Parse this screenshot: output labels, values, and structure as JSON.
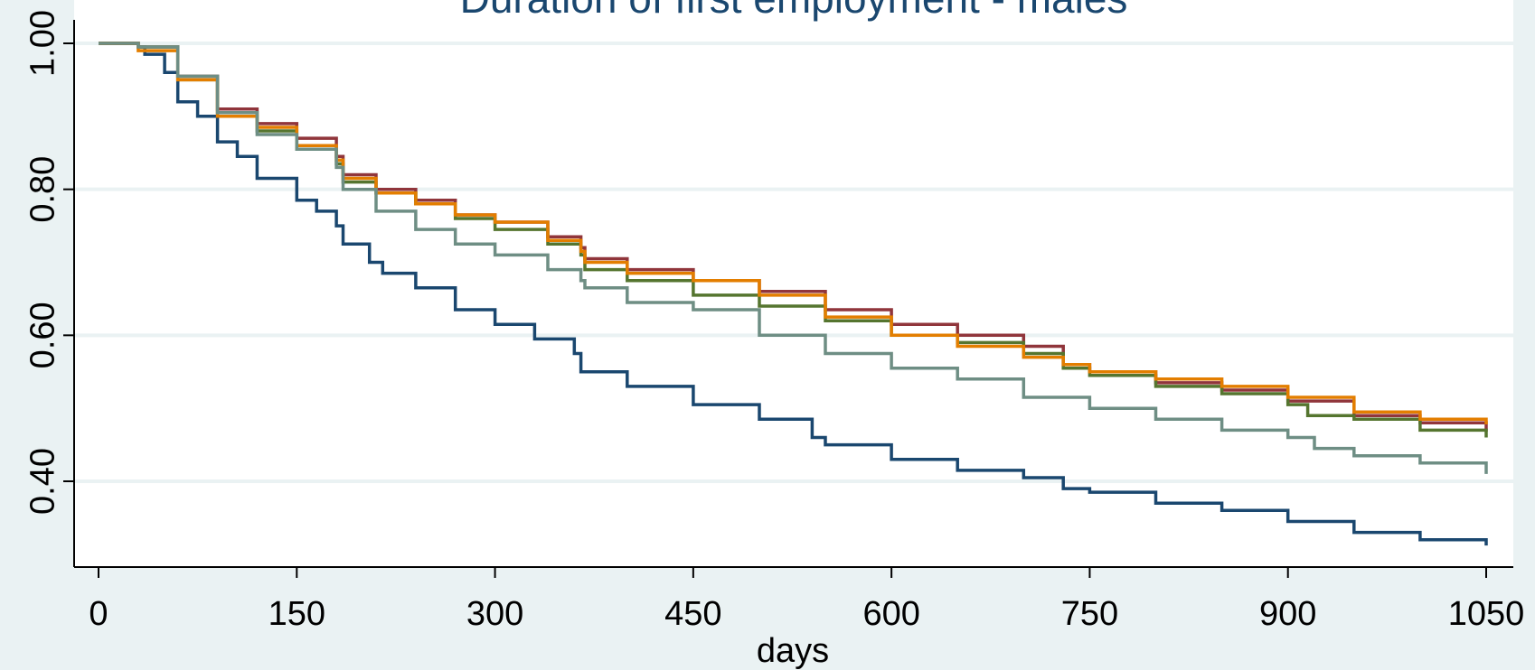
{
  "chart_data": {
    "type": "line",
    "title": "Duration of first employment - males",
    "xlabel": "days",
    "ylabel": "",
    "xlim": [
      0,
      1050
    ],
    "ylim": [
      0.28,
      1.03
    ],
    "x_ticks": [
      0,
      150,
      300,
      450,
      600,
      750,
      900,
      1050
    ],
    "x_tick_labels": [
      "0",
      "150",
      "300",
      "450",
      "600",
      "750",
      "900",
      "1050"
    ],
    "y_ticks": [
      0.4,
      0.6,
      0.8,
      1.0
    ],
    "y_tick_labels": [
      "0.40",
      "0.60",
      "0.80",
      "1.00"
    ],
    "grid": true,
    "legend": "none",
    "step": true,
    "series": [
      {
        "color": "#1a476f",
        "points": [
          [
            0,
            1.0
          ],
          [
            30,
            0.995
          ],
          [
            35,
            0.985
          ],
          [
            50,
            0.96
          ],
          [
            60,
            0.92
          ],
          [
            75,
            0.9
          ],
          [
            90,
            0.865
          ],
          [
            105,
            0.845
          ],
          [
            120,
            0.815
          ],
          [
            150,
            0.785
          ],
          [
            165,
            0.77
          ],
          [
            180,
            0.75
          ],
          [
            185,
            0.725
          ],
          [
            205,
            0.7
          ],
          [
            215,
            0.685
          ],
          [
            240,
            0.665
          ],
          [
            270,
            0.635
          ],
          [
            300,
            0.615
          ],
          [
            330,
            0.595
          ],
          [
            360,
            0.575
          ],
          [
            365,
            0.55
          ],
          [
            400,
            0.53
          ],
          [
            450,
            0.505
          ],
          [
            500,
            0.485
          ],
          [
            540,
            0.46
          ],
          [
            550,
            0.45
          ],
          [
            600,
            0.43
          ],
          [
            650,
            0.415
          ],
          [
            700,
            0.405
          ],
          [
            730,
            0.39
          ],
          [
            750,
            0.385
          ],
          [
            800,
            0.37
          ],
          [
            850,
            0.36
          ],
          [
            900,
            0.345
          ],
          [
            950,
            0.33
          ],
          [
            1000,
            0.32
          ],
          [
            1050,
            0.312
          ]
        ]
      },
      {
        "color": "#90353b",
        "points": [
          [
            0,
            1.0
          ],
          [
            30,
            0.995
          ],
          [
            60,
            0.955
          ],
          [
            90,
            0.91
          ],
          [
            120,
            0.89
          ],
          [
            150,
            0.87
          ],
          [
            180,
            0.845
          ],
          [
            185,
            0.82
          ],
          [
            210,
            0.8
          ],
          [
            240,
            0.785
          ],
          [
            270,
            0.765
          ],
          [
            300,
            0.755
          ],
          [
            340,
            0.735
          ],
          [
            365,
            0.72
          ],
          [
            368,
            0.705
          ],
          [
            400,
            0.69
          ],
          [
            450,
            0.675
          ],
          [
            500,
            0.66
          ],
          [
            550,
            0.635
          ],
          [
            600,
            0.615
          ],
          [
            650,
            0.6
          ],
          [
            700,
            0.585
          ],
          [
            730,
            0.56
          ],
          [
            750,
            0.55
          ],
          [
            800,
            0.535
          ],
          [
            850,
            0.525
          ],
          [
            900,
            0.51
          ],
          [
            950,
            0.49
          ],
          [
            1000,
            0.48
          ],
          [
            1050,
            0.468
          ]
        ]
      },
      {
        "color": "#55752f",
        "points": [
          [
            0,
            1.0
          ],
          [
            30,
            0.995
          ],
          [
            60,
            0.95
          ],
          [
            90,
            0.905
          ],
          [
            120,
            0.88
          ],
          [
            150,
            0.855
          ],
          [
            180,
            0.835
          ],
          [
            185,
            0.81
          ],
          [
            210,
            0.795
          ],
          [
            240,
            0.78
          ],
          [
            270,
            0.76
          ],
          [
            300,
            0.745
          ],
          [
            340,
            0.725
          ],
          [
            365,
            0.71
          ],
          [
            368,
            0.69
          ],
          [
            400,
            0.675
          ],
          [
            450,
            0.655
          ],
          [
            500,
            0.64
          ],
          [
            550,
            0.62
          ],
          [
            600,
            0.6
          ],
          [
            650,
            0.59
          ],
          [
            700,
            0.575
          ],
          [
            730,
            0.555
          ],
          [
            750,
            0.545
          ],
          [
            800,
            0.53
          ],
          [
            850,
            0.52
          ],
          [
            900,
            0.505
          ],
          [
            915,
            0.49
          ],
          [
            950,
            0.485
          ],
          [
            1000,
            0.47
          ],
          [
            1050,
            0.46
          ]
        ]
      },
      {
        "color": "#e37e00",
        "points": [
          [
            0,
            1.0
          ],
          [
            30,
            0.99
          ],
          [
            60,
            0.95
          ],
          [
            90,
            0.9
          ],
          [
            120,
            0.885
          ],
          [
            150,
            0.86
          ],
          [
            180,
            0.84
          ],
          [
            185,
            0.815
          ],
          [
            210,
            0.795
          ],
          [
            240,
            0.78
          ],
          [
            270,
            0.765
          ],
          [
            300,
            0.755
          ],
          [
            340,
            0.73
          ],
          [
            365,
            0.715
          ],
          [
            368,
            0.7
          ],
          [
            400,
            0.685
          ],
          [
            450,
            0.675
          ],
          [
            500,
            0.655
          ],
          [
            550,
            0.625
          ],
          [
            600,
            0.6
          ],
          [
            650,
            0.585
          ],
          [
            700,
            0.57
          ],
          [
            730,
            0.56
          ],
          [
            750,
            0.55
          ],
          [
            800,
            0.54
          ],
          [
            850,
            0.53
          ],
          [
            900,
            0.515
          ],
          [
            950,
            0.495
          ],
          [
            1000,
            0.485
          ],
          [
            1050,
            0.478
          ]
        ]
      },
      {
        "color": "#6e8e84",
        "points": [
          [
            0,
            1.0
          ],
          [
            30,
            0.995
          ],
          [
            60,
            0.955
          ],
          [
            90,
            0.905
          ],
          [
            120,
            0.875
          ],
          [
            150,
            0.855
          ],
          [
            180,
            0.83
          ],
          [
            185,
            0.8
          ],
          [
            210,
            0.77
          ],
          [
            240,
            0.745
          ],
          [
            270,
            0.725
          ],
          [
            300,
            0.71
          ],
          [
            340,
            0.69
          ],
          [
            365,
            0.675
          ],
          [
            368,
            0.665
          ],
          [
            400,
            0.645
          ],
          [
            450,
            0.635
          ],
          [
            500,
            0.6
          ],
          [
            550,
            0.575
          ],
          [
            600,
            0.555
          ],
          [
            650,
            0.54
          ],
          [
            700,
            0.515
          ],
          [
            750,
            0.5
          ],
          [
            800,
            0.485
          ],
          [
            850,
            0.47
          ],
          [
            900,
            0.46
          ],
          [
            920,
            0.445
          ],
          [
            950,
            0.435
          ],
          [
            1000,
            0.425
          ],
          [
            1050,
            0.41
          ]
        ]
      }
    ]
  }
}
